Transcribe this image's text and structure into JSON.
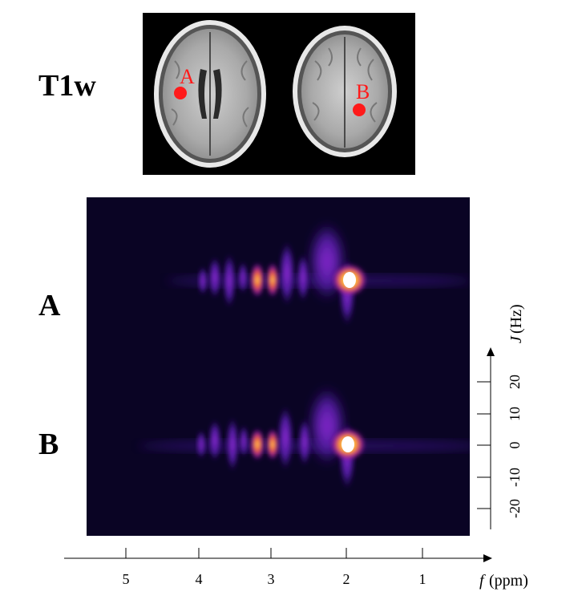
{
  "labels": {
    "t1w": "T1w",
    "row_a": "A",
    "row_b": "B"
  },
  "mri": {
    "marker_a": "A",
    "marker_b": "B",
    "marker_color": "#ff1a1a"
  },
  "spectrum": {
    "colormap": "black-purple-magenta-orange-yellow-white",
    "background_color": "#0a0424"
  },
  "x_axis": {
    "ticks": [
      "5",
      "4",
      "3",
      "2",
      "1"
    ],
    "label_var": "f",
    "label_unit": "(ppm)"
  },
  "y_axis": {
    "ticks": [
      "20",
      "10",
      "0",
      "-10",
      "-20"
    ],
    "label_var": "J",
    "label_unit": "(Hz)"
  }
}
